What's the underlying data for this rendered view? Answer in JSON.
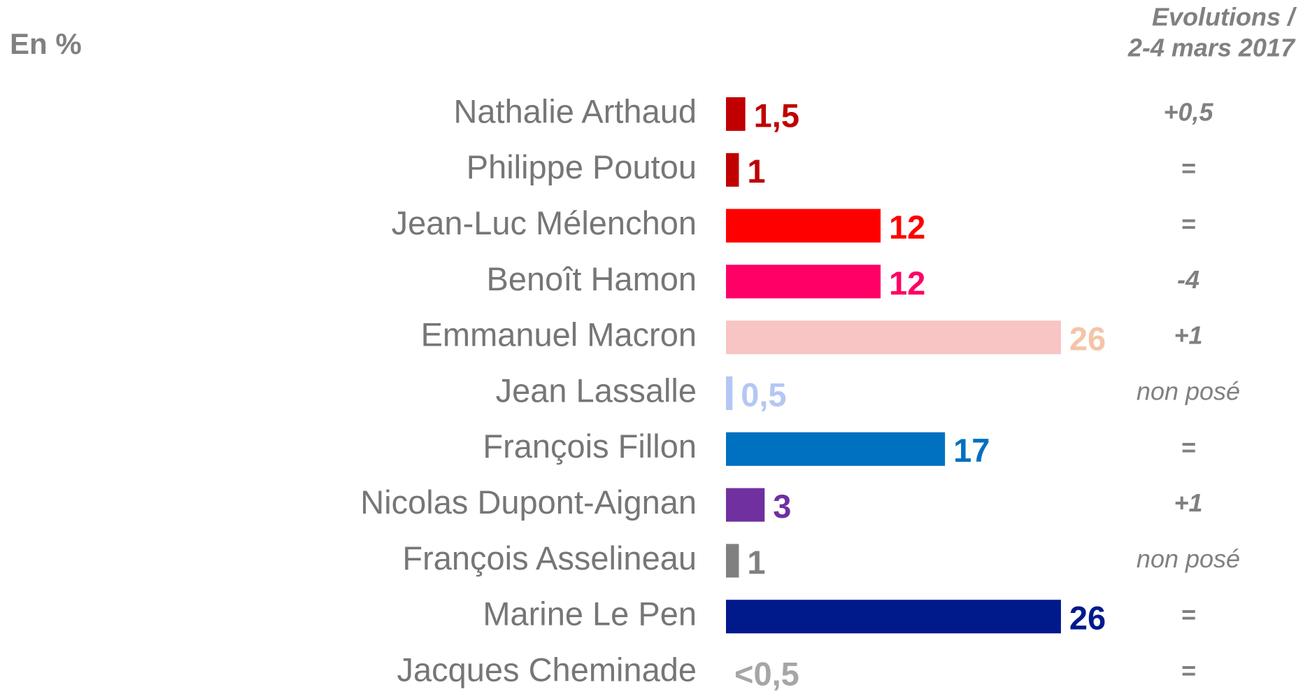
{
  "chart_data": {
    "type": "hbar",
    "unit_label": "En %",
    "evolutions_title": [
      "Evolutions /",
      "2-4 mars 2017"
    ],
    "categories": [
      "Nathalie Arthaud",
      "Philippe Poutou",
      "Jean-Luc Mélenchon",
      "Benoît Hamon",
      "Emmanuel Macron",
      "Jean Lassalle",
      "François Fillon",
      "Nicolas Dupont-Aignan",
      "François Asselineau",
      "Marine Le Pen",
      "Jacques Cheminade"
    ],
    "values": [
      1.5,
      1,
      12,
      12,
      26,
      0.5,
      17,
      3,
      1,
      26,
      null
    ],
    "value_labels": [
      "1,5",
      "1",
      "12",
      "12",
      "26",
      "0,5",
      "17",
      "3",
      "1",
      "26",
      "<0,5"
    ],
    "colors": [
      "#c00000",
      "#c00000",
      "#ff0000",
      "#ff0066",
      "#f8c4c4",
      "#b4c7f4",
      "#0070c0",
      "#7030a0",
      "#808080",
      "#001a8c",
      "#a6a6a6"
    ],
    "label_colors": [
      "#c00000",
      "#c00000",
      "#ff0000",
      "#ff0066",
      "#f4c4a8",
      "#b4c7f4",
      "#0070c0",
      "#7030a0",
      "#808080",
      "#001a8c",
      "#a6a6a6"
    ],
    "evolutions": [
      "+0,5",
      "=",
      "=",
      "-4",
      "+1",
      "non posé",
      "=",
      "+1",
      "non posé",
      "=",
      "="
    ]
  }
}
